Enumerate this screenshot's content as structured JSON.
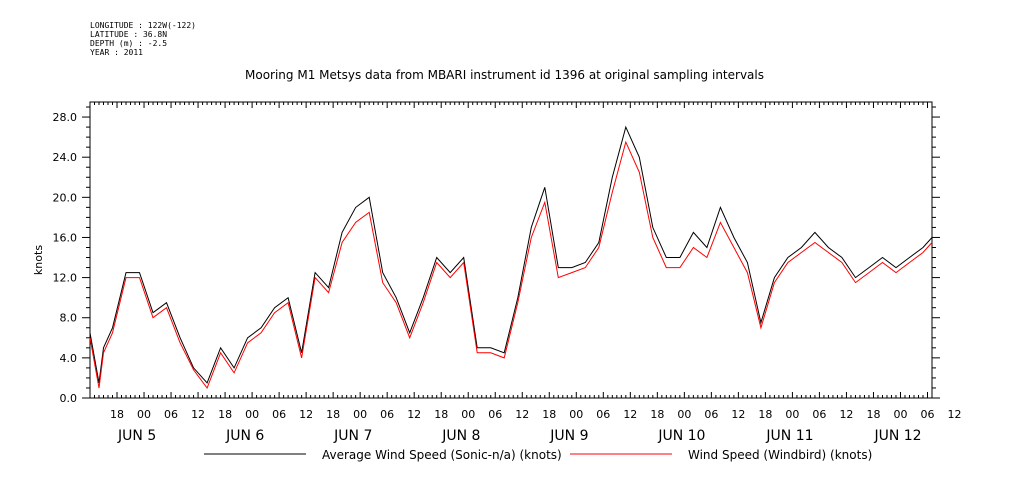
{
  "meta_lines": [
    "LONGITUDE : 122W(-122)",
    "LATITUDE : 36.8N",
    "DEPTH (m) : -2.5",
    "YEAR : 2011"
  ],
  "chart_data": {
    "type": "line",
    "title": "Mooring M1 Metsys data from MBARI instrument id 1396 at original sampling intervals",
    "ylabel": "knots",
    "ylim": [
      0,
      29.5
    ],
    "yticks": [
      "0.0",
      "4.0",
      "8.0",
      "12.0",
      "16.0",
      "20.0",
      "24.0",
      "28.0"
    ],
    "xlim_hours": [
      0,
      187
    ],
    "hour_labels": [
      "18",
      "00",
      "06",
      "12",
      "18",
      "00",
      "06",
      "12",
      "18",
      "00",
      "06",
      "12",
      "18",
      "00",
      "06",
      "12",
      "18",
      "00",
      "06",
      "12",
      "18",
      "00",
      "06",
      "12",
      "18",
      "00",
      "06",
      "12",
      "18",
      "00",
      "06",
      "12"
    ],
    "day_labels": [
      "JUN  5",
      "JUN  6",
      "JUN  7",
      "JUN  8",
      "JUN  9",
      "JUN 10",
      "JUN 11",
      "JUN 12"
    ],
    "series": [
      {
        "name": "Average Wind Speed (Sonic-n/a) (knots)",
        "color": "#000000",
        "x": [
          0,
          2,
          3,
          5,
          8,
          11,
          14,
          17,
          20,
          23,
          26,
          29,
          32,
          35,
          38,
          41,
          44,
          47,
          50,
          53,
          56,
          59,
          62,
          65,
          68,
          71,
          74,
          77,
          80,
          83,
          86,
          89,
          92,
          95,
          98,
          101,
          104,
          107,
          110,
          113,
          116,
          119,
          122,
          125,
          128,
          131,
          134,
          137,
          140,
          143,
          146,
          149,
          152,
          155,
          158,
          161,
          164,
          167,
          170,
          173,
          176,
          179,
          182,
          185,
          187
        ],
        "y": [
          6.5,
          1.5,
          5,
          7,
          12.5,
          12.5,
          8.5,
          9.5,
          6,
          3,
          1.5,
          5,
          3,
          6,
          7,
          9,
          10,
          4.5,
          12.5,
          11,
          16.5,
          19,
          20,
          12.5,
          10,
          6.5,
          10,
          14,
          12.5,
          14,
          5,
          5,
          4.5,
          10,
          17,
          21,
          13,
          13,
          13.5,
          15.5,
          22,
          27,
          24,
          17,
          14,
          14,
          16.5,
          15,
          19,
          16,
          13.5,
          7.5,
          12,
          14,
          15,
          16.5,
          15,
          14,
          12,
          13,
          14,
          13,
          14,
          15,
          16
        ]
      },
      {
        "name": "Wind Speed (Windbird) (knots)",
        "color": "#ff0000",
        "x": [
          0,
          2,
          3,
          5,
          8,
          11,
          14,
          17,
          20,
          23,
          26,
          29,
          32,
          35,
          38,
          41,
          44,
          47,
          50,
          53,
          56,
          59,
          62,
          65,
          68,
          71,
          74,
          77,
          80,
          83,
          86,
          89,
          92,
          95,
          98,
          101,
          104,
          107,
          110,
          113,
          116,
          119,
          122,
          125,
          128,
          131,
          134,
          137,
          140,
          143,
          146,
          149,
          152,
          155,
          158,
          161,
          164,
          167,
          170,
          173,
          176,
          179,
          182,
          185,
          187
        ],
        "y": [
          6,
          1,
          4.5,
          6.5,
          12,
          12,
          8,
          9,
          5.5,
          2.8,
          1,
          4.5,
          2.5,
          5.5,
          6.5,
          8.5,
          9.5,
          4,
          12,
          10.5,
          15.5,
          17.5,
          18.5,
          11.5,
          9.5,
          6,
          9.5,
          13.5,
          12,
          13.5,
          4.5,
          4.5,
          4,
          9.5,
          16,
          19.5,
          12,
          12.5,
          13,
          15,
          20.5,
          25.5,
          22.5,
          16,
          13,
          13,
          15,
          14,
          17.5,
          15,
          12.5,
          7,
          11.5,
          13.5,
          14.5,
          15.5,
          14.5,
          13.5,
          11.5,
          12.5,
          13.5,
          12.5,
          13.5,
          14.5,
          15.5
        ]
      }
    ],
    "legend_placement": "bottom"
  }
}
